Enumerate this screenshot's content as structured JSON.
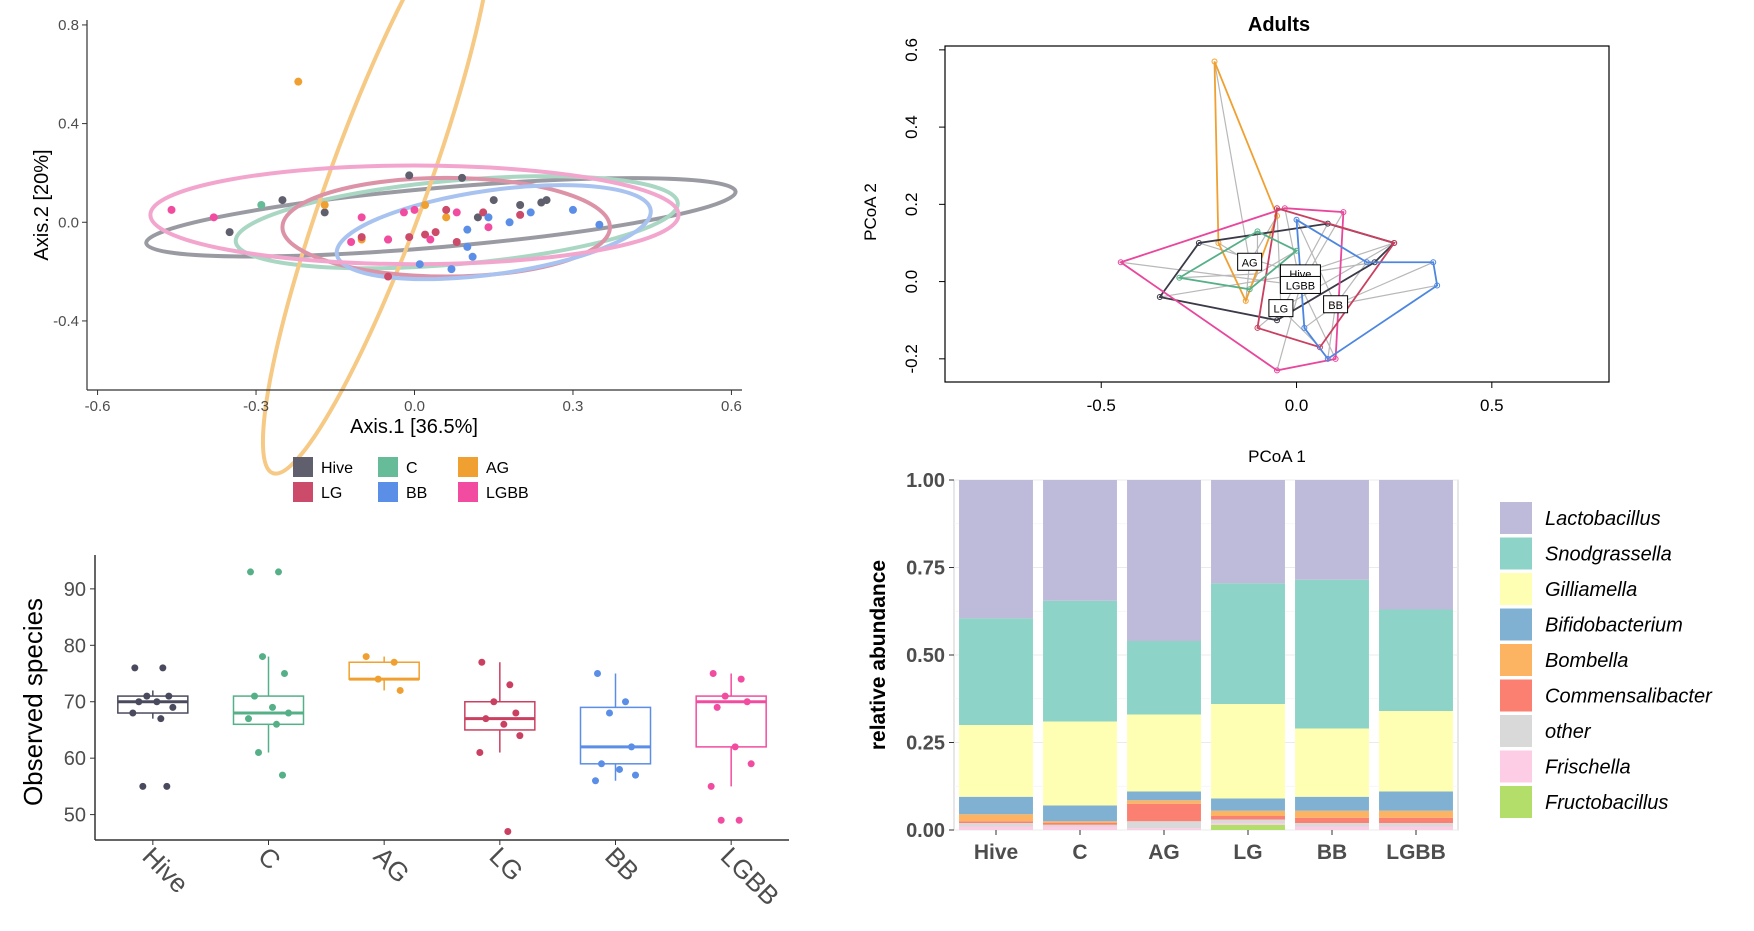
{
  "chart_data": [
    {
      "type": "scatter",
      "panel": "pcoa-ellipses",
      "xlabel": "Axis.1   [36.5%]",
      "ylabel": "Axis.2   [20%]",
      "xlim": [
        -0.62,
        0.62
      ],
      "ylim": [
        -0.68,
        0.82
      ],
      "xticks": [
        -0.6,
        -0.3,
        0.0,
        0.3,
        0.6
      ],
      "xtick_labels": [
        "-0.6",
        "-0.3",
        "0.0",
        "0.3",
        "0.6"
      ],
      "yticks": [
        -0.4,
        0.0,
        0.4,
        0.8
      ],
      "ytick_labels": [
        "-0.4",
        "0.0",
        "0.4",
        "0.8"
      ],
      "grid": false,
      "legend_position": "bottom",
      "groups": [
        {
          "name": "Hive",
          "color": "#5f5f6e",
          "ellipse_color": "#9a9aa2",
          "points": [
            [
              -0.35,
              -0.04
            ],
            [
              -0.25,
              0.09
            ],
            [
              -0.17,
              0.04
            ],
            [
              -0.01,
              0.19
            ],
            [
              0.12,
              0.02
            ],
            [
              0.15,
              0.09
            ],
            [
              0.2,
              0.07
            ],
            [
              0.24,
              0.08
            ],
            [
              0.25,
              0.09
            ],
            [
              0.09,
              0.18
            ]
          ],
          "ellipse": {
            "cx": 0.05,
            "cy": 0.02,
            "rx": 0.56,
            "ry": 0.12,
            "angle": 5
          }
        },
        {
          "name": "C",
          "color": "#66bb99",
          "ellipse_color": "#a9d7c3",
          "points": [
            -0.29,
            0.07
          ],
          "ellipse": {
            "cx": 0.08,
            "cy": 0.0,
            "rx": 0.42,
            "ry": 0.17,
            "angle": 5
          }
        },
        {
          "name": "AG",
          "color": "#f0a030",
          "ellipse_color": "#f6c985",
          "points": [
            [
              -0.22,
              0.57
            ],
            [
              -0.17,
              0.07
            ],
            [
              -0.1,
              -0.07
            ],
            [
              0.02,
              0.07
            ],
            [
              0.06,
              0.02
            ]
          ],
          "ellipse": {
            "cx": -0.07,
            "cy": 0.15,
            "rx": 0.58,
            "ry": 0.2,
            "angle": 70
          }
        },
        {
          "name": "LG",
          "color": "#cc4a6a",
          "ellipse_color": "#dc93a7",
          "points": [
            [
              -0.1,
              -0.06
            ],
            [
              -0.05,
              -0.07
            ],
            [
              -0.01,
              -0.06
            ],
            [
              0.02,
              -0.05
            ],
            [
              0.04,
              -0.04
            ],
            [
              0.06,
              0.05
            ],
            [
              0.08,
              -0.08
            ],
            [
              0.13,
              0.04
            ],
            [
              0.2,
              0.03
            ],
            [
              -0.05,
              -0.22
            ]
          ],
          "ellipse": {
            "cx": 0.06,
            "cy": -0.02,
            "rx": 0.31,
            "ry": 0.2,
            "angle": 0
          }
        },
        {
          "name": "BB",
          "color": "#5b8ee6",
          "ellipse_color": "#a8c3ef",
          "points": [
            [
              0.01,
              -0.17
            ],
            [
              0.07,
              -0.19
            ],
            [
              0.1,
              -0.1
            ],
            [
              0.1,
              -0.03
            ],
            [
              0.14,
              0.02
            ],
            [
              0.18,
              0.0
            ],
            [
              0.22,
              0.04
            ],
            [
              0.3,
              0.05
            ],
            [
              0.35,
              -0.01
            ],
            [
              0.11,
              -0.14
            ]
          ],
          "ellipse": {
            "cx": 0.15,
            "cy": -0.04,
            "rx": 0.3,
            "ry": 0.17,
            "angle": 8
          }
        },
        {
          "name": "LGBB",
          "color": "#f24ca0",
          "ellipse_color": "#f3a6cd",
          "points": [
            [
              -0.46,
              0.05
            ],
            [
              -0.38,
              0.02
            ],
            [
              -0.1,
              0.02
            ],
            [
              -0.05,
              -0.07
            ],
            [
              -0.02,
              0.04
            ],
            [
              0.0,
              0.05
            ],
            [
              0.08,
              0.04
            ],
            [
              0.14,
              -0.02
            ],
            [
              0.03,
              -0.07
            ],
            [
              -0.12,
              -0.08
            ]
          ],
          "ellipse": {
            "cx": 0.0,
            "cy": 0.03,
            "rx": 0.5,
            "ry": 0.2,
            "angle": 0
          }
        }
      ]
    },
    {
      "type": "scatter",
      "panel": "pcoa-hulls",
      "title": "Adults",
      "xlabel": "PCoA 1",
      "ylabel": "PCoA 2",
      "xlim": [
        -0.9,
        0.8
      ],
      "ylim": [
        -0.26,
        0.61
      ],
      "xticks": [
        -0.5,
        0.0,
        0.5
      ],
      "xtick_labels": [
        "-0.5",
        "0.0",
        "0.5"
      ],
      "yticks": [
        -0.2,
        0.0,
        0.2,
        0.4,
        0.6
      ],
      "ytick_labels": [
        "-0.2",
        "0.0",
        "0.2",
        "0.4",
        "0.6"
      ],
      "grid": false,
      "centroid_labels": [
        "AG",
        "Hive",
        "LGBB",
        "LG",
        "BB"
      ],
      "groups": [
        {
          "name": "AG",
          "color": "#f0a030",
          "centroid": [
            -0.12,
            0.05
          ],
          "hull": [
            [
              -0.21,
              0.57
            ],
            [
              -0.05,
              0.17
            ],
            [
              -0.13,
              -0.05
            ],
            [
              -0.2,
              0.1
            ]
          ]
        },
        {
          "name": "Hive",
          "color": "#3a3a48",
          "centroid": [
            0.01,
            0.02
          ],
          "hull": [
            [
              -0.35,
              -0.04
            ],
            [
              -0.25,
              0.1
            ],
            [
              0.08,
              0.15
            ],
            [
              0.25,
              0.1
            ],
            [
              0.2,
              0.05
            ],
            [
              -0.05,
              -0.1
            ]
          ]
        },
        {
          "name": "LGBB",
          "color": "#e8479c",
          "centroid": [
            0.01,
            -0.01
          ],
          "hull": [
            [
              -0.45,
              0.05
            ],
            [
              -0.03,
              0.19
            ],
            [
              0.12,
              0.18
            ],
            [
              0.1,
              -0.2
            ],
            [
              -0.05,
              -0.23
            ]
          ]
        },
        {
          "name": "LG",
          "color": "#c94060",
          "centroid": [
            -0.04,
            -0.07
          ],
          "hull": [
            [
              -0.05,
              0.19
            ],
            [
              0.25,
              0.1
            ],
            [
              0.06,
              -0.17
            ],
            [
              -0.1,
              -0.12
            ]
          ]
        },
        {
          "name": "BB",
          "color": "#4d86e0",
          "centroid": [
            0.1,
            -0.06
          ],
          "hull": [
            [
              0.0,
              0.16
            ],
            [
              0.18,
              0.05
            ],
            [
              0.35,
              0.05
            ],
            [
              0.36,
              -0.01
            ],
            [
              0.08,
              -0.2
            ],
            [
              0.02,
              -0.12
            ]
          ]
        },
        {
          "name": "C",
          "color": "#55b088",
          "centroid": [
            -0.1,
            0.02
          ],
          "hull": [
            [
              -0.3,
              0.01
            ],
            [
              -0.1,
              0.13
            ],
            [
              0.0,
              0.08
            ],
            [
              -0.12,
              -0.02
            ]
          ]
        }
      ]
    },
    {
      "type": "box",
      "panel": "observed-species",
      "ylabel": "Observed species",
      "ylim": [
        45.5,
        96
      ],
      "yticks": [
        50,
        60,
        70,
        80,
        90
      ],
      "ytick_labels": [
        "50",
        "60",
        "70",
        "80",
        "90"
      ],
      "categories": [
        "Hive",
        "C",
        "AG",
        "LG",
        "BB",
        "LGBB"
      ],
      "boxes": [
        {
          "name": "Hive",
          "color": "#4a4a5e",
          "q1": 68,
          "median": 70,
          "q3": 71,
          "whisker_low": 67,
          "whisker_high": 72,
          "points": [
            76,
            76,
            71,
            71,
            70,
            70,
            69,
            68,
            67,
            55,
            55
          ]
        },
        {
          "name": "C",
          "color": "#55b088",
          "q1": 66,
          "median": 68,
          "q3": 71,
          "whisker_low": 61,
          "whisker_high": 78,
          "points": [
            93,
            93,
            78,
            75,
            71,
            69,
            68,
            67,
            66,
            61,
            57
          ]
        },
        {
          "name": "AG",
          "color": "#f0a030",
          "q1": 74,
          "median": 74,
          "q3": 77,
          "whisker_low": 72,
          "whisker_high": 78,
          "points": [
            78,
            77,
            74,
            72
          ]
        },
        {
          "name": "LG",
          "color": "#c94060",
          "q1": 65,
          "median": 67,
          "q3": 70,
          "whisker_low": 61,
          "whisker_high": 77,
          "points": [
            77,
            73,
            70,
            68,
            67,
            66,
            64,
            61,
            47
          ]
        },
        {
          "name": "BB",
          "color": "#5b8ee6",
          "q1": 59,
          "median": 62,
          "q3": 69,
          "whisker_low": 56,
          "whisker_high": 75,
          "points": [
            75,
            70,
            68,
            62,
            59,
            58,
            57,
            56
          ]
        },
        {
          "name": "LGBB",
          "color": "#f24ca0",
          "q1": 62,
          "median": 70,
          "q3": 71,
          "whisker_low": 55,
          "whisker_high": 75,
          "points": [
            75,
            74,
            71,
            70,
            69,
            62,
            59,
            55,
            49,
            49
          ]
        }
      ]
    },
    {
      "type": "bar",
      "stacked": true,
      "panel": "relative-abundance",
      "xlabel": "",
      "ylabel": "relative abundance",
      "ylim": [
        0,
        1
      ],
      "yticks": [
        0,
        0.25,
        0.5,
        0.75,
        1
      ],
      "ytick_labels": [
        "0.00",
        "0.25",
        "0.50",
        "0.75",
        "1.00"
      ],
      "categories": [
        "Hive",
        "C",
        "AG",
        "LG",
        "BB",
        "LGBB"
      ],
      "legend_position": "right",
      "series": [
        {
          "name": "Fructobacillus",
          "color": "#b3de69",
          "values": [
            0.0,
            0.0,
            0.0,
            0.015,
            0.0,
            0.0
          ]
        },
        {
          "name": "Frischella",
          "color": "#fccde5",
          "values": [
            0.01,
            0.01,
            0.005,
            0.005,
            0.01,
            0.01
          ]
        },
        {
          "name": "other",
          "color": "#d9d9d9",
          "values": [
            0.01,
            0.005,
            0.02,
            0.01,
            0.01,
            0.01
          ]
        },
        {
          "name": "Commensalibacter",
          "color": "#fb8072",
          "values": [
            0.005,
            0.005,
            0.05,
            0.01,
            0.015,
            0.015
          ]
        },
        {
          "name": "Bombella",
          "color": "#fdb462",
          "values": [
            0.02,
            0.005,
            0.01,
            0.015,
            0.02,
            0.02
          ]
        },
        {
          "name": "Bifidobacterium",
          "color": "#80b1d3",
          "values": [
            0.05,
            0.045,
            0.025,
            0.035,
            0.04,
            0.055
          ]
        },
        {
          "name": "Gilliamella",
          "color": "#ffffb3",
          "values": [
            0.205,
            0.24,
            0.22,
            0.27,
            0.195,
            0.23
          ]
        },
        {
          "name": "Snodgrassella",
          "color": "#8dd3c7",
          "values": [
            0.305,
            0.345,
            0.21,
            0.345,
            0.425,
            0.29
          ]
        },
        {
          "name": "Lactobacillus",
          "color": "#bebada",
          "values": [
            0.395,
            0.345,
            0.46,
            0.295,
            0.285,
            0.37
          ]
        }
      ],
      "legend_order": [
        "Lactobacillus",
        "Snodgrassella",
        "Gilliamella",
        "Bifidobacterium",
        "Bombella",
        "Commensalibacter",
        "other",
        "Frischella",
        "Fructobacillus"
      ]
    }
  ]
}
